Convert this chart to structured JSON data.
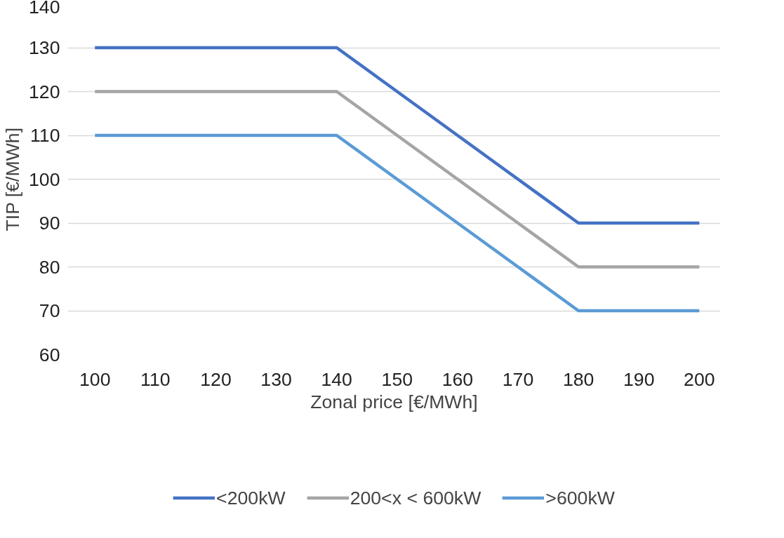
{
  "chart_data": {
    "type": "line",
    "xlabel": "Zonal price [€/MWh]",
    "ylabel": "TIP [€/MWh]",
    "categories": [
      "100",
      "110",
      "120",
      "130",
      "140",
      "150",
      "160",
      "170",
      "180",
      "190",
      "200"
    ],
    "series": [
      {
        "name": "<200kW",
        "color": "#4472c4",
        "values": [
          130,
          130,
          130,
          130,
          130,
          120,
          110,
          100,
          90,
          90,
          90
        ]
      },
      {
        "name": "200<x < 600kW",
        "color": "#a5a5a5",
        "values": [
          120,
          120,
          120,
          120,
          120,
          110,
          100,
          90,
          80,
          80,
          80
        ]
      },
      {
        "name": ">600kW",
        "color": "#5b9bd5",
        "values": [
          110,
          110,
          110,
          110,
          110,
          100,
          90,
          80,
          70,
          70,
          70
        ]
      }
    ],
    "ylim": [
      60,
      140
    ],
    "yticks": [
      60,
      70,
      80,
      90,
      100,
      110,
      120,
      130,
      140
    ],
    "grid": "y",
    "legend": "bottom",
    "marker": "none",
    "line_style": "solid"
  }
}
